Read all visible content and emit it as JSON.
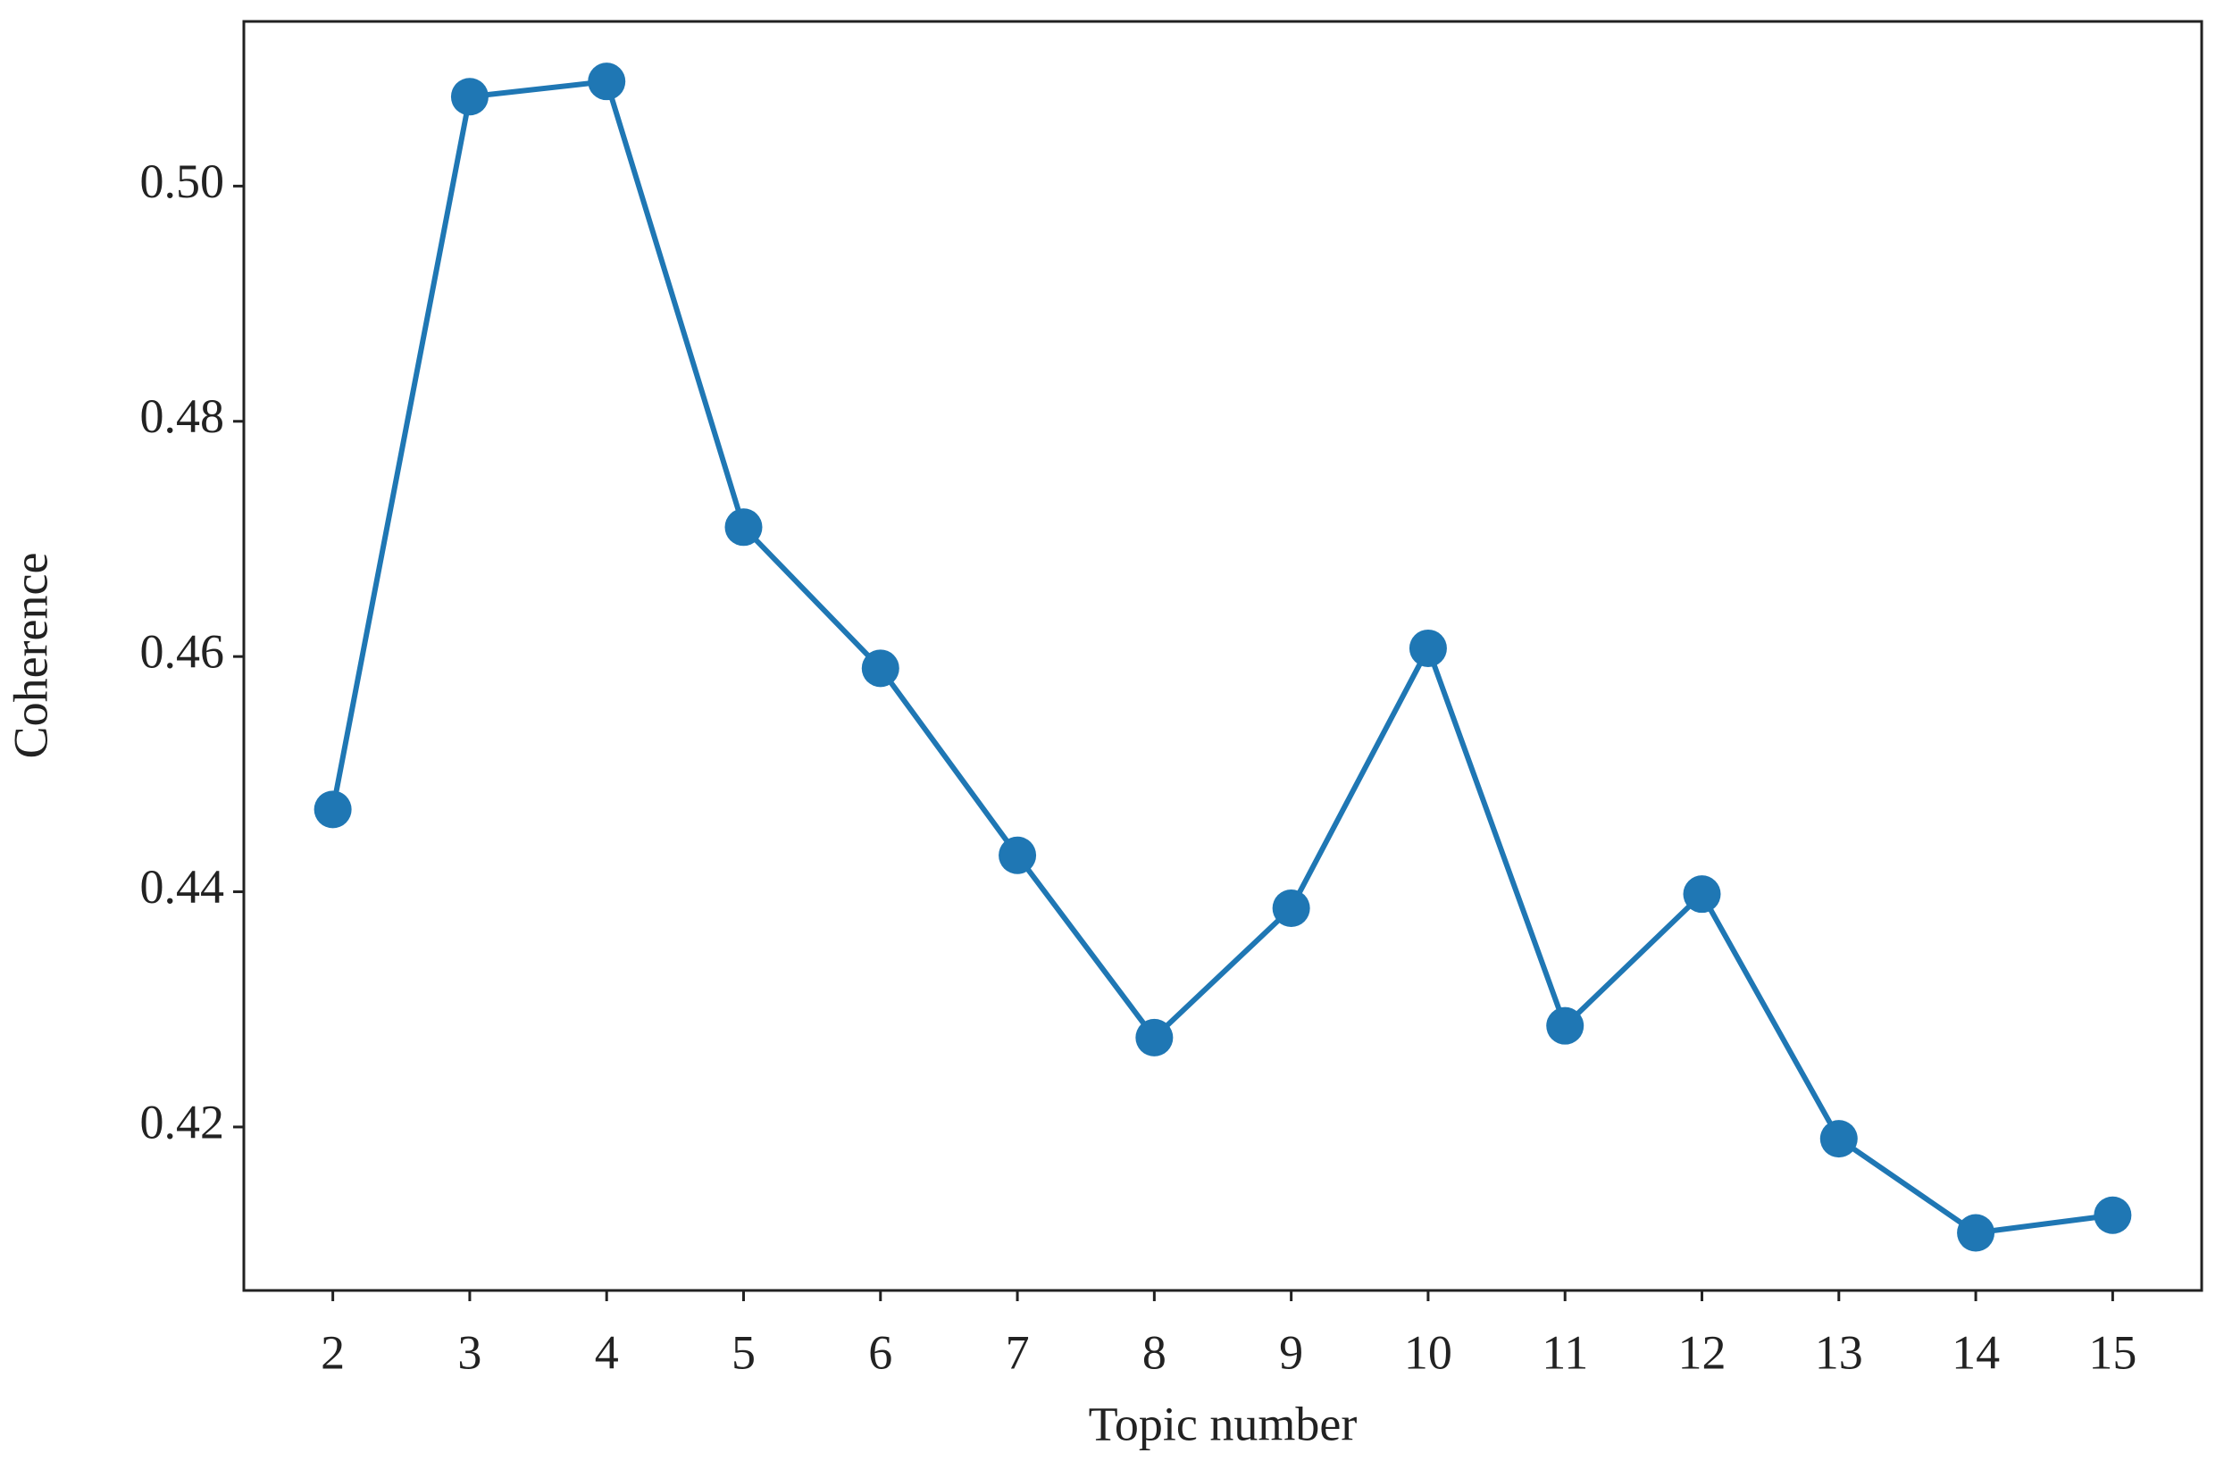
{
  "chart_data": {
    "type": "line",
    "xlabel": "Topic number",
    "ylabel": "Coherence",
    "x": [
      2,
      3,
      4,
      5,
      6,
      7,
      8,
      9,
      10,
      11,
      12,
      13,
      14,
      15
    ],
    "series": [
      {
        "color": "#1f77b4",
        "values": [
          0.447,
          0.5076,
          0.5089,
          0.471,
          0.459,
          0.4431,
          0.4276,
          0.4386,
          0.4607,
          0.4286,
          0.4398,
          0.419,
          0.411,
          0.4125
        ]
      }
    ],
    "xlim": [
      1.35,
      15.65
    ],
    "ylim": [
      0.4061,
      0.514
    ],
    "xticks": [
      2,
      3,
      4,
      5,
      6,
      7,
      8,
      9,
      10,
      11,
      12,
      13,
      14,
      15
    ],
    "yticks": [
      0.42,
      0.44,
      0.46,
      0.48,
      {
        "value": 0.5,
        "label": "0.50"
      }
    ],
    "markers": true
  }
}
